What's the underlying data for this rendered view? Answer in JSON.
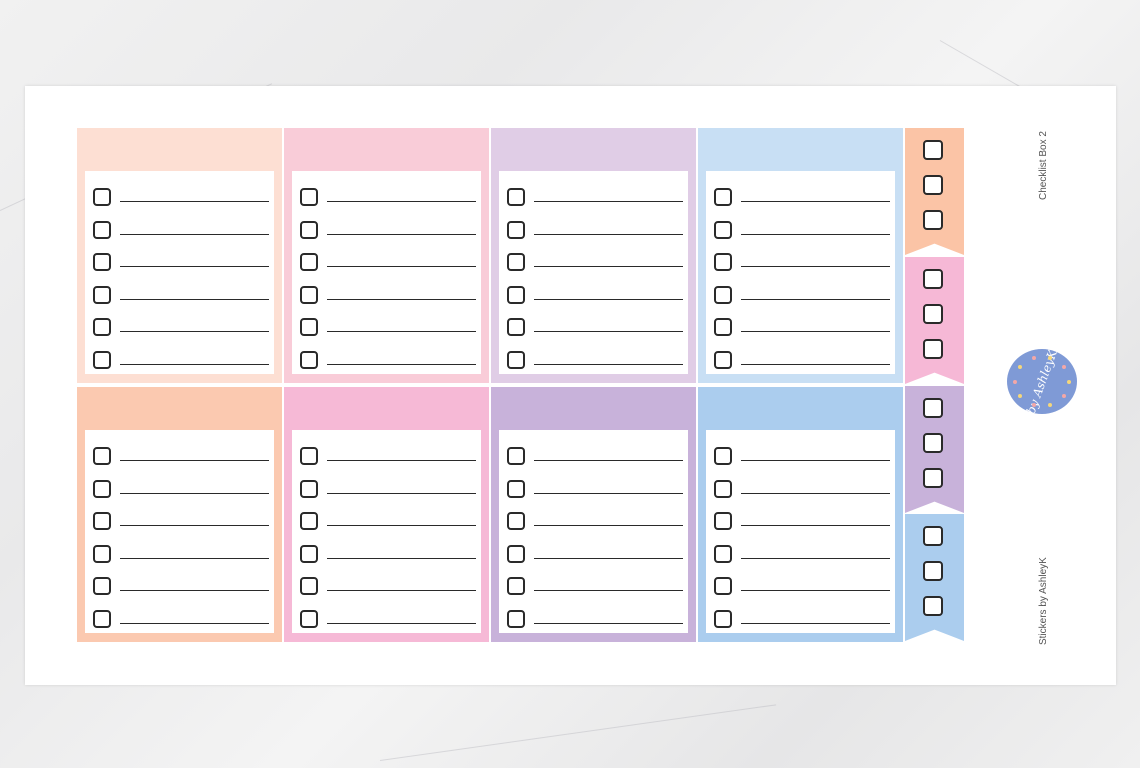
{
  "sheet": {
    "title": "Checklist Box 2",
    "credit": "Stickers by AshleyK",
    "logo_text": "by AshleyK"
  },
  "checklist_boxes": {
    "rows": [
      {
        "colors": [
          "#fddfd3",
          "#f9ccd8",
          "#e0cde6",
          "#c8dff4"
        ]
      },
      {
        "colors": [
          "#fbc9b0",
          "#f6b9d6",
          "#c8b2da",
          "#abcdee"
        ]
      }
    ],
    "checkbox_items_per_box": 6
  },
  "flags": {
    "colors": [
      "#fbc4a6",
      "#f6b8d6",
      "#c8b2da",
      "#abcdee"
    ],
    "checkboxes_per_flag": 3
  },
  "colors": {
    "outline": "#2a2a2a",
    "logo_bg": "#7f9ad6",
    "sheet": "#ffffff"
  }
}
